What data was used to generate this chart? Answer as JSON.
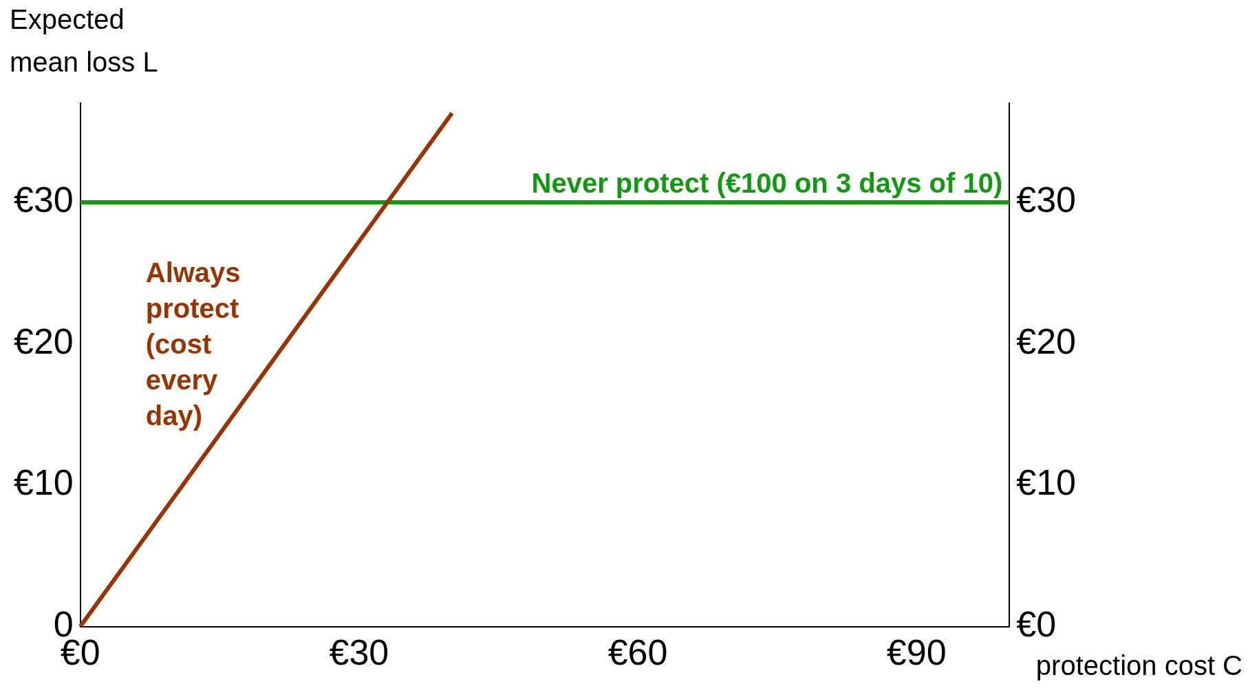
{
  "chart_data": {
    "type": "line",
    "xlabel": "protection cost C",
    "ylabel": "Expected mean loss L",
    "series": [
      {
        "name": "Always protect (cost every day)",
        "color": "#993300",
        "x": [
          0,
          40
        ],
        "values": [
          0,
          36.3
        ]
      },
      {
        "name": "Never protect (€100 on 3 days of 10)",
        "color": "#119911",
        "x": [
          0,
          100
        ],
        "values": [
          30,
          30
        ]
      }
    ],
    "xlim": [
      0,
      100
    ],
    "xticks": [
      {
        "value": 0,
        "label": "€0"
      },
      {
        "value": 30,
        "label": "€30"
      },
      {
        "value": 60,
        "label": "€60"
      },
      {
        "value": 90,
        "label": "€90"
      }
    ],
    "ylim": [
      0,
      37
    ],
    "yticks": [
      {
        "value": 0,
        "label": "0"
      },
      {
        "value": 10,
        "label": "€10"
      },
      {
        "value": 20,
        "label": "€20"
      },
      {
        "value": 30,
        "label": "€30"
      }
    ],
    "y2lim": [
      0,
      37
    ],
    "y2ticks": [
      {
        "value": 0,
        "label": "€0"
      },
      {
        "value": 10,
        "label": "€10"
      },
      {
        "value": 20,
        "label": "€20"
      },
      {
        "value": 30,
        "label": "€30"
      }
    ],
    "grid": false,
    "legend": false,
    "marker": "none",
    "line_style": "solid"
  }
}
